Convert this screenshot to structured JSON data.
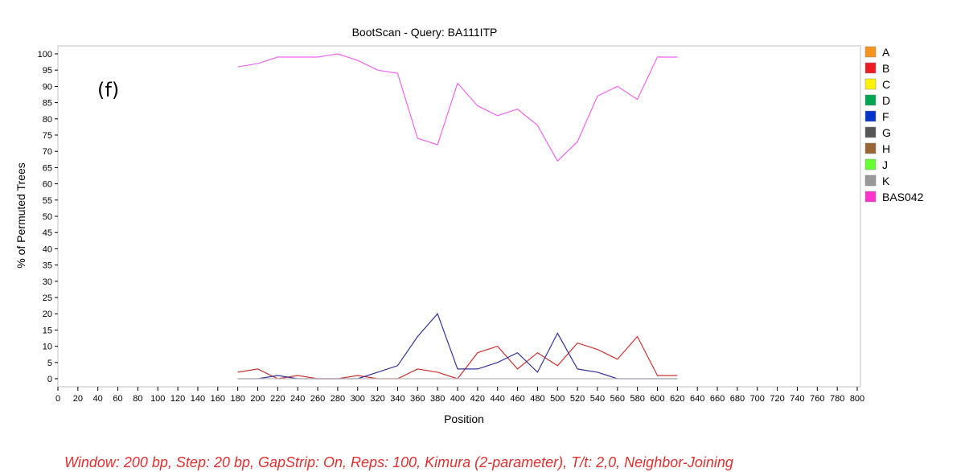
{
  "chart_data": {
    "type": "line",
    "title": "BootScan - Query: BA111ITP",
    "panel_label": "(f)",
    "xlabel": "Position",
    "ylabel": "% of Permuted Trees",
    "xlim": [
      0,
      800
    ],
    "ylim": [
      0,
      100
    ],
    "xticks": [
      0,
      20,
      40,
      60,
      80,
      100,
      120,
      140,
      160,
      180,
      200,
      220,
      240,
      260,
      280,
      300,
      320,
      340,
      360,
      380,
      400,
      420,
      440,
      460,
      480,
      500,
      520,
      540,
      560,
      580,
      600,
      620,
      640,
      660,
      680,
      700,
      720,
      740,
      760,
      780,
      800
    ],
    "yticks": [
      0,
      5,
      10,
      15,
      20,
      25,
      30,
      35,
      40,
      45,
      50,
      55,
      60,
      65,
      70,
      75,
      80,
      85,
      90,
      95,
      100
    ],
    "grid": false,
    "legend_position": "right",
    "legend": [
      {
        "name": "A",
        "color": "#f7941d"
      },
      {
        "name": "B",
        "color": "#ed1c24"
      },
      {
        "name": "C",
        "color": "#fff200"
      },
      {
        "name": "D",
        "color": "#00a651"
      },
      {
        "name": "F",
        "color": "#0033cc"
      },
      {
        "name": "G",
        "color": "#555555"
      },
      {
        "name": "H",
        "color": "#996633"
      },
      {
        "name": "J",
        "color": "#66ff33"
      },
      {
        "name": "K",
        "color": "#999999"
      },
      {
        "name": "BAS042",
        "color": "#ff33cc"
      }
    ],
    "x": [
      180,
      200,
      220,
      240,
      260,
      280,
      300,
      320,
      340,
      360,
      380,
      400,
      420,
      440,
      460,
      480,
      500,
      520,
      540,
      560,
      580,
      600,
      620
    ],
    "series": [
      {
        "name": "BAS042",
        "color": "#ee66ee",
        "values": [
          96,
          97,
          99,
          99,
          99,
          100,
          98,
          95,
          94,
          74,
          72,
          91,
          84,
          81,
          83,
          78,
          67,
          73,
          87,
          90,
          86,
          99,
          99
        ]
      },
      {
        "name": "B",
        "color": "#cc3333",
        "values": [
          2,
          3,
          0,
          1,
          0,
          0,
          1,
          0,
          0,
          3,
          2,
          0,
          8,
          10,
          3,
          8,
          4,
          11,
          9,
          6,
          13,
          1,
          1
        ]
      },
      {
        "name": "F",
        "color": "#333399",
        "values": [
          0,
          0,
          1,
          0,
          0,
          0,
          0,
          2,
          4,
          13,
          20,
          3,
          3,
          5,
          8,
          2,
          14,
          3,
          2,
          0,
          0,
          0,
          0
        ]
      },
      {
        "name": "K",
        "color": "#bbbbbb",
        "values": [
          0,
          0,
          0,
          0,
          0,
          0,
          0,
          0,
          0,
          0,
          0,
          0,
          0,
          0,
          0,
          0,
          0,
          0,
          0,
          0,
          0,
          0,
          0
        ]
      }
    ]
  },
  "footer": {
    "text": "Window: 200 bp, Step: 20 bp, GapStrip: On, Reps: 100, Kimura (2-parameter), T/t: 2,0, Neighbor-Joining",
    "color": "#e03030"
  }
}
